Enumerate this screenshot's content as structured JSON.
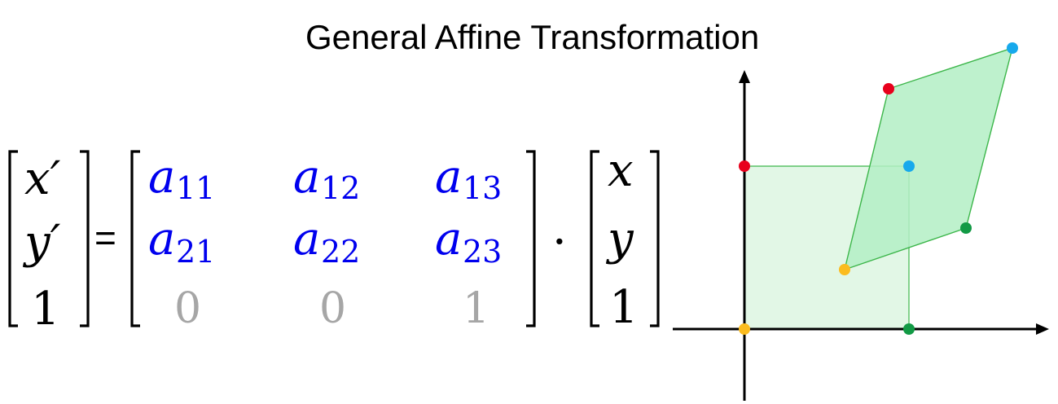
{
  "title": "General Affine Transformation",
  "equation": {
    "lhs": [
      "x′",
      "y′",
      "1"
    ],
    "equals": "=",
    "matrix": [
      [
        {
          "base": "a",
          "sub": "11"
        },
        {
          "base": "a",
          "sub": "12"
        },
        {
          "base": "a",
          "sub": "13"
        }
      ],
      [
        {
          "base": "a",
          "sub": "21"
        },
        {
          "base": "a",
          "sub": "22"
        },
        {
          "base": "a",
          "sub": "23"
        }
      ],
      [
        {
          "text": "0"
        },
        {
          "text": "0"
        },
        {
          "text": "1"
        }
      ]
    ],
    "dot": "·",
    "rhs": [
      "x",
      "y",
      "1"
    ]
  },
  "colors": {
    "coefficient": "#0000ee",
    "constant_row": "#a6a6a6",
    "text": "#000000",
    "original_fill": "#e2f7e6",
    "transformed_fill": "#b3eec4",
    "shape_stroke": "#3cb64a",
    "corner_red": "#e8001c",
    "corner_blue": "#17a9ec",
    "corner_green": "#129a45",
    "corner_orange": "#fbbc1f"
  },
  "diagram": {
    "original_square": [
      {
        "corner": "bottom-left",
        "color": "corner_orange"
      },
      {
        "corner": "bottom-right",
        "color": "corner_green"
      },
      {
        "corner": "top-right",
        "color": "corner_blue"
      },
      {
        "corner": "top-left",
        "color": "corner_red"
      }
    ],
    "transformed_parallelogram": [
      {
        "corner": "bottom-left",
        "color": "corner_orange"
      },
      {
        "corner": "bottom-right",
        "color": "corner_green"
      },
      {
        "corner": "top-right",
        "color": "corner_blue"
      },
      {
        "corner": "top-left",
        "color": "corner_red"
      }
    ]
  }
}
